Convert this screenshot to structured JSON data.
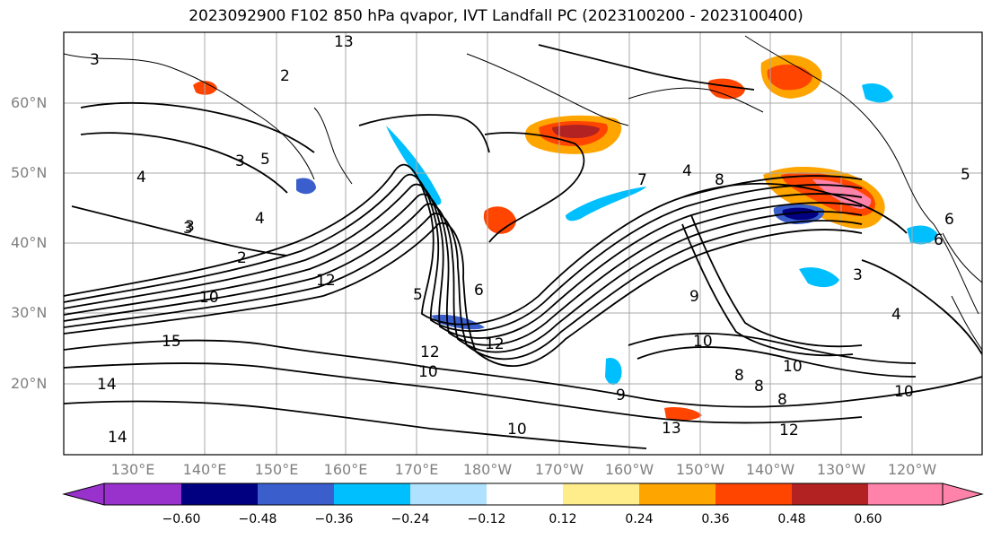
{
  "title": "2023092900 F102 850 hPa qvapor, IVT Landfall PC (2023100200 - 2023100400)",
  "lat_labels": [
    "60°N",
    "50°N",
    "40°N",
    "30°N",
    "20°N"
  ],
  "lon_labels": [
    "130°E",
    "140°E",
    "150°E",
    "160°E",
    "170°E",
    "180°W",
    "170°W",
    "160°W",
    "150°W",
    "140°W",
    "130°W",
    "120°W"
  ],
  "contour_labels": [
    "3",
    "2",
    "13",
    "3",
    "5",
    "4",
    "4",
    "3",
    "2",
    "10",
    "15",
    "12",
    "5",
    "6",
    "12",
    "12",
    "10",
    "9",
    "10",
    "13",
    "14",
    "14",
    "3",
    "7",
    "4",
    "8",
    "9",
    "8",
    "10",
    "10",
    "8",
    "10",
    "8",
    "12",
    "6",
    "5",
    "6",
    "4",
    "3"
  ],
  "colorbar": {
    "ticks": [
      "−0.60",
      "−0.48",
      "−0.36",
      "−0.24",
      "−0.12",
      "0.12",
      "0.24",
      "0.36",
      "0.48",
      "0.60"
    ],
    "colors": [
      "#9932cc",
      "#000080",
      "#3a5fcd",
      "#00bfff",
      "#b0e2ff",
      "#ffffff",
      "#ffec8b",
      "#ffa500",
      "#ff4500",
      "#b22222",
      "#ff82ab"
    ]
  },
  "colors": {
    "grid": "#a9a9a9",
    "contour": "#000000",
    "coast": "#000000"
  }
}
